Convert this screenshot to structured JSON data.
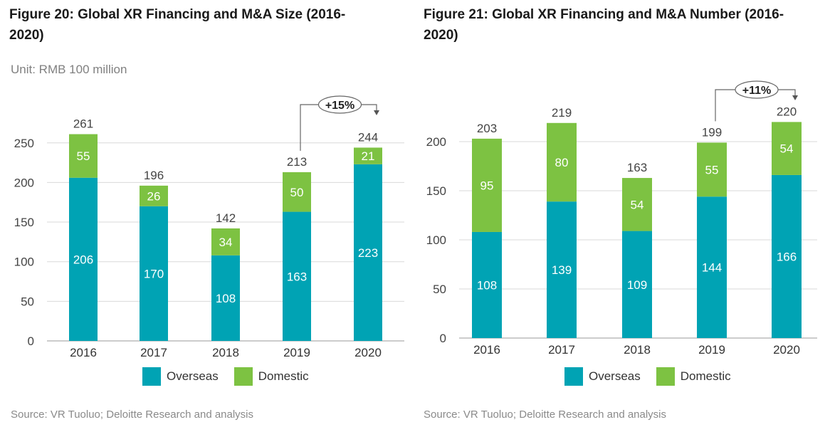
{
  "colors": {
    "overseas": "#00A3B4",
    "domestic": "#7DC242"
  },
  "legend": {
    "overseas": "Overseas",
    "domestic": "Domestic"
  },
  "panels": [
    {
      "title": "Figure 20: Global XR Financing and M&A Size (2016-2020)",
      "unit": "Unit: RMB 100 million",
      "source": "Source: VR Tuoluo; Deloitte Research and analysis",
      "growth_label": "+15%"
    },
    {
      "title": "Figure 21: Global XR Financing and M&A Number (2016-2020)",
      "unit": "",
      "source": "Source: VR Tuoluo; Deloitte Research and analysis",
      "growth_label": "+11%"
    }
  ],
  "chart_data": [
    {
      "type": "bar",
      "stacked": true,
      "title": "Figure 20: Global XR Financing and M&A Size (2016-2020)",
      "unit": "Unit: RMB 100 million",
      "categories": [
        "2016",
        "2017",
        "2018",
        "2019",
        "2020"
      ],
      "series": [
        {
          "name": "Overseas",
          "values": [
            206,
            170,
            108,
            163,
            223
          ]
        },
        {
          "name": "Domestic",
          "values": [
            55,
            26,
            34,
            50,
            21
          ]
        }
      ],
      "totals": [
        261,
        196,
        142,
        213,
        244
      ],
      "ylim": [
        0,
        270
      ],
      "yticks": [
        0,
        50,
        100,
        150,
        200,
        250
      ],
      "grid": true,
      "legend_position": "bottom",
      "annotation": {
        "text": "+15%",
        "from": "2019",
        "to": "2020"
      }
    },
    {
      "type": "bar",
      "stacked": true,
      "title": "Figure 21: Global XR Financing and M&A Number (2016-2020)",
      "categories": [
        "2016",
        "2017",
        "2018",
        "2019",
        "2020"
      ],
      "series": [
        {
          "name": "Overseas",
          "values": [
            108,
            139,
            109,
            144,
            166
          ]
        },
        {
          "name": "Domestic",
          "values": [
            95,
            80,
            54,
            55,
            54
          ]
        }
      ],
      "totals": [
        203,
        219,
        163,
        199,
        220
      ],
      "ylim": [
        0,
        230
      ],
      "yticks": [
        0,
        50,
        100,
        150,
        200
      ],
      "grid": true,
      "legend_position": "bottom",
      "annotation": {
        "text": "+11%",
        "from": "2019",
        "to": "2020"
      }
    }
  ]
}
